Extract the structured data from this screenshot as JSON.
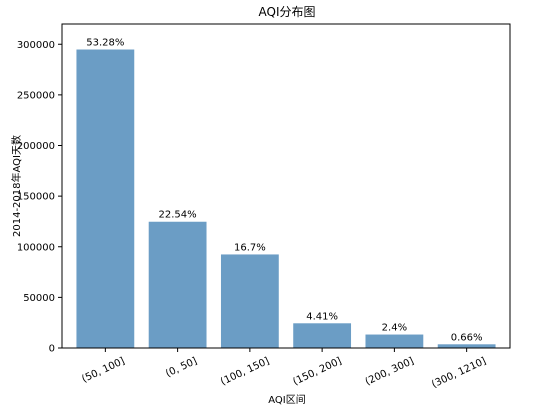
{
  "chart_data": {
    "type": "bar",
    "title": "AQI分布图",
    "xlabel": "AQI区间",
    "ylabel": "2014-2018年AQI天数",
    "categories": [
      "(50, 100]",
      "(0, 50]",
      "(100, 150]",
      "(150, 200]",
      "(200, 300]",
      "(300, 1210]"
    ],
    "values": [
      294800,
      124700,
      92400,
      24400,
      13300,
      3650
    ],
    "data_labels": [
      "53.28%",
      "22.54%",
      "16.7%",
      "4.41%",
      "2.4%",
      "0.66%"
    ],
    "yticks": [
      0,
      50000,
      100000,
      150000,
      200000,
      250000,
      300000
    ],
    "ylim": [
      0,
      320000
    ],
    "bar_color": "#6b9dc5",
    "grid": false,
    "legend": "none"
  }
}
